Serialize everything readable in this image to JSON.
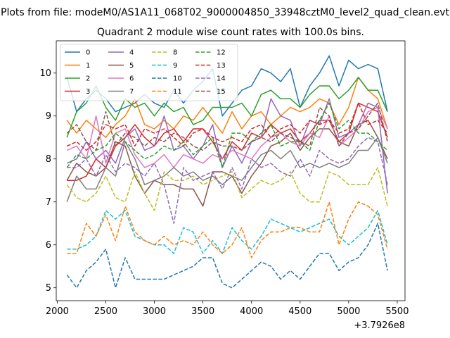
{
  "suptitle": "Plots from file: modeM0/AS1A11_068T02_9000004850_33948cztM0_level2_quad_clean.evt",
  "chart_data": {
    "type": "line",
    "title": "Quadrant 2 module wise count rates with 100.0s bins.",
    "xlabel": "",
    "ylabel": "",
    "x_offset_label": "+3.7926e8",
    "xlim": [
      1990,
      5580
    ],
    "ylim": [
      4.7,
      10.75
    ],
    "xticks": [
      2000,
      2500,
      3000,
      3500,
      4000,
      4500,
      5000,
      5500
    ],
    "yticks": [
      5,
      6,
      7,
      8,
      9,
      10
    ],
    "legend_position": "upper-left",
    "x": [
      2100,
      2200,
      2300,
      2400,
      2500,
      2600,
      2700,
      2800,
      2900,
      3000,
      3100,
      3200,
      3300,
      3400,
      3500,
      3600,
      3700,
      3800,
      3900,
      4000,
      4100,
      4200,
      4300,
      4400,
      4500,
      4600,
      4700,
      4800,
      4900,
      5000,
      5100,
      5200,
      5300,
      5400
    ],
    "series": [
      {
        "name": "0",
        "color": "#1f77b4",
        "dash": "solid",
        "values": [
          9.9,
          9.1,
          9.4,
          9.6,
          9.4,
          9.1,
          9.2,
          9.3,
          9.5,
          9.3,
          9.2,
          9.6,
          9.3,
          9.6,
          9.8,
          10.1,
          9.0,
          9.3,
          9.6,
          9.7,
          10.1,
          10.0,
          9.8,
          10.1,
          9.2,
          9.7,
          10.0,
          10.4,
          9.7,
          10.3,
          10.1,
          10.2,
          10.1,
          9.1
        ]
      },
      {
        "name": "1",
        "color": "#ff7f0e",
        "dash": "solid",
        "values": [
          8.9,
          8.6,
          8.9,
          8.7,
          8.5,
          8.8,
          9.0,
          9.4,
          8.8,
          8.7,
          8.9,
          8.7,
          9.0,
          8.9,
          9.2,
          8.9,
          8.6,
          9.1,
          8.7,
          9.0,
          9.1,
          8.8,
          9.0,
          9.2,
          9.1,
          9.2,
          9.4,
          9.3,
          8.8,
          9.2,
          9.9,
          9.6,
          9.4,
          8.7
        ]
      },
      {
        "name": "2",
        "color": "#2ca02c",
        "dash": "solid",
        "values": [
          8.5,
          9.1,
          9.3,
          9.7,
          9.2,
          8.9,
          9.4,
          9.2,
          9.3,
          9.0,
          9.3,
          9.1,
          9.2,
          8.8,
          8.9,
          9.2,
          9.2,
          9.2,
          9.3,
          9.0,
          9.5,
          9.6,
          9.4,
          9.4,
          9.2,
          9.5,
          9.7,
          9.7,
          9.4,
          9.6,
          9.9,
          9.6,
          9.6,
          9.1
        ]
      },
      {
        "name": "3",
        "color": "#d62728",
        "dash": "solid",
        "values": [
          7.5,
          7.5,
          7.6,
          8.0,
          7.8,
          8.3,
          8.5,
          8.8,
          8.5,
          8.3,
          8.6,
          8.7,
          8.4,
          8.7,
          8.7,
          8.4,
          8.0,
          8.4,
          8.2,
          8.6,
          8.5,
          8.8,
          8.6,
          8.7,
          8.4,
          8.6,
          8.9,
          8.9,
          8.4,
          8.6,
          9.3,
          9.2,
          9.1,
          8.5
        ]
      },
      {
        "name": "4",
        "color": "#9467bd",
        "dash": "solid",
        "values": [
          7.9,
          8.0,
          8.4,
          8.0,
          8.2,
          7.9,
          8.5,
          8.7,
          8.2,
          8.3,
          9.0,
          8.2,
          8.3,
          8.0,
          8.3,
          8.8,
          7.8,
          8.3,
          7.9,
          8.4,
          8.5,
          9.4,
          9.0,
          8.9,
          8.3,
          8.9,
          8.8,
          9.4,
          8.5,
          8.6,
          8.8,
          9.3,
          9.2,
          7.2
        ]
      },
      {
        "name": "5",
        "color": "#8c564b",
        "dash": "solid",
        "values": [
          7.5,
          7.9,
          7.7,
          7.6,
          7.8,
          8.4,
          8.3,
          7.6,
          7.2,
          7.5,
          7.4,
          7.4,
          7.3,
          7.3,
          6.9,
          7.7,
          7.7,
          7.6,
          7.2,
          7.6,
          7.9,
          8.3,
          8.4,
          8.6,
          8.2,
          8.5,
          8.7,
          8.7,
          8.4,
          8.3,
          8.8,
          8.9,
          8.5,
          8.0
        ]
      },
      {
        "name": "6",
        "color": "#e377c2",
        "dash": "solid",
        "values": [
          8.2,
          8.3,
          8.0,
          9.0,
          7.9,
          8.6,
          8.7,
          8.1,
          7.8,
          7.9,
          8.1,
          7.8,
          8.1,
          8.0,
          7.9,
          8.1,
          8.0,
          8.2,
          8.1,
          8.0,
          8.3,
          8.5,
          8.6,
          8.4,
          8.3,
          8.6,
          8.5,
          9.0,
          8.3,
          8.5,
          8.7,
          9.1,
          9.2,
          8.7
        ]
      },
      {
        "name": "7",
        "color": "#7f7f7f",
        "dash": "solid",
        "values": [
          7.0,
          7.6,
          7.3,
          7.3,
          7.8,
          7.6,
          8.4,
          8.0,
          7.4,
          7.5,
          7.6,
          7.8,
          7.6,
          7.7,
          7.5,
          7.6,
          7.4,
          7.6,
          7.5,
          7.8,
          8.1,
          8.2,
          8.0,
          8.2,
          7.8,
          7.9,
          7.8,
          7.9,
          7.8,
          7.9,
          8.2,
          8.2,
          8.5,
          7.9
        ]
      },
      {
        "name": "8",
        "color": "#bcbd22",
        "dash": "dashed",
        "values": [
          7.4,
          7.1,
          7.0,
          7.2,
          7.6,
          7.1,
          7.0,
          7.7,
          7.2,
          6.8,
          7.7,
          7.5,
          7.5,
          7.6,
          7.4,
          7.5,
          7.6,
          7.7,
          7.1,
          7.3,
          7.5,
          7.4,
          7.5,
          7.7,
          7.2,
          7.0,
          7.0,
          7.7,
          7.6,
          7.4,
          7.4,
          7.4,
          7.8,
          6.9
        ]
      },
      {
        "name": "9",
        "color": "#17becf",
        "dash": "dashed",
        "values": [
          5.9,
          5.9,
          6.0,
          6.2,
          6.8,
          6.6,
          6.8,
          6.2,
          6.1,
          6.0,
          6.0,
          5.8,
          6.4,
          6.3,
          5.8,
          6.1,
          5.8,
          6.4,
          6.1,
          5.9,
          6.2,
          6.6,
          6.5,
          6.4,
          6.3,
          6.4,
          6.5,
          6.6,
          6.2,
          6.0,
          6.2,
          6.4,
          6.8,
          6.0
        ]
      },
      {
        "name": "10",
        "color": "#1f77b4",
        "dash": "dashed",
        "values": [
          5.3,
          5.0,
          5.4,
          5.6,
          5.9,
          5.0,
          5.7,
          5.2,
          5.2,
          5.2,
          5.2,
          5.3,
          5.4,
          5.5,
          5.7,
          5.7,
          5.1,
          5.0,
          5.2,
          5.4,
          5.6,
          5.5,
          5.2,
          5.4,
          5.2,
          5.5,
          5.8,
          5.8,
          5.4,
          5.6,
          5.7,
          6.0,
          6.5,
          5.4
        ]
      },
      {
        "name": "11",
        "color": "#ff7f0e",
        "dash": "dashed",
        "values": [
          5.8,
          5.8,
          6.5,
          6.2,
          6.7,
          6.1,
          6.9,
          6.3,
          6.1,
          6.0,
          6.2,
          6.0,
          6.1,
          6.0,
          6.3,
          6.0,
          5.8,
          6.0,
          6.4,
          5.7,
          6.1,
          6.3,
          6.3,
          6.4,
          6.4,
          6.3,
          6.3,
          7.0,
          6.0,
          6.6,
          7.0,
          6.9,
          6.7,
          5.9
        ]
      },
      {
        "name": "12",
        "color": "#2ca02c",
        "dash": "dashed",
        "values": [
          7.8,
          8.1,
          8.0,
          8.2,
          8.3,
          8.6,
          8.4,
          8.2,
          8.0,
          8.1,
          8.3,
          8.2,
          8.4,
          8.1,
          8.3,
          8.5,
          7.8,
          8.6,
          8.6,
          8.4,
          8.6,
          8.8,
          8.3,
          8.4,
          8.4,
          8.2,
          8.9,
          9.3,
          8.7,
          8.9,
          8.6,
          8.6,
          8.4,
          8.2
        ]
      },
      {
        "name": "13",
        "color": "#d62728",
        "dash": "dashed",
        "values": [
          8.3,
          8.4,
          8.2,
          8.4,
          8.8,
          8.7,
          8.8,
          8.3,
          8.7,
          8.6,
          8.7,
          8.5,
          8.3,
          8.6,
          8.7,
          8.5,
          8.4,
          8.5,
          8.4,
          8.7,
          8.8,
          8.5,
          8.7,
          8.8,
          8.6,
          8.9,
          8.8,
          8.9,
          8.6,
          8.7,
          9.3,
          8.8,
          8.9,
          8.6
        ]
      },
      {
        "name": "14",
        "color": "#9467bd",
        "dash": "dashed",
        "values": [
          7.8,
          7.8,
          8.0,
          7.6,
          8.1,
          7.7,
          7.9,
          7.8,
          7.6,
          7.9,
          7.4,
          6.5,
          7.8,
          7.5,
          7.6,
          7.7,
          7.3,
          7.8,
          7.3,
          8.0,
          7.8,
          7.9,
          7.7,
          7.6,
          8.0,
          7.6,
          8.2,
          8.0,
          7.9,
          8.0,
          8.3,
          8.5,
          8.4,
          7.4
        ]
      },
      {
        "name": "15",
        "color": "#8c564b",
        "dash": "dashed",
        "values": [
          8.6,
          8.8,
          8.4,
          8.2,
          9.1,
          8.3,
          8.6,
          8.5,
          8.3,
          8.5,
          8.4,
          8.6,
          8.5,
          8.3,
          8.2,
          8.4,
          8.3,
          8.3,
          8.2,
          8.4,
          8.5,
          8.4,
          8.6,
          8.5,
          8.4,
          8.3,
          9.2,
          9.0,
          8.3,
          8.6,
          8.7,
          9.0,
          9.3,
          8.4
        ]
      }
    ]
  }
}
